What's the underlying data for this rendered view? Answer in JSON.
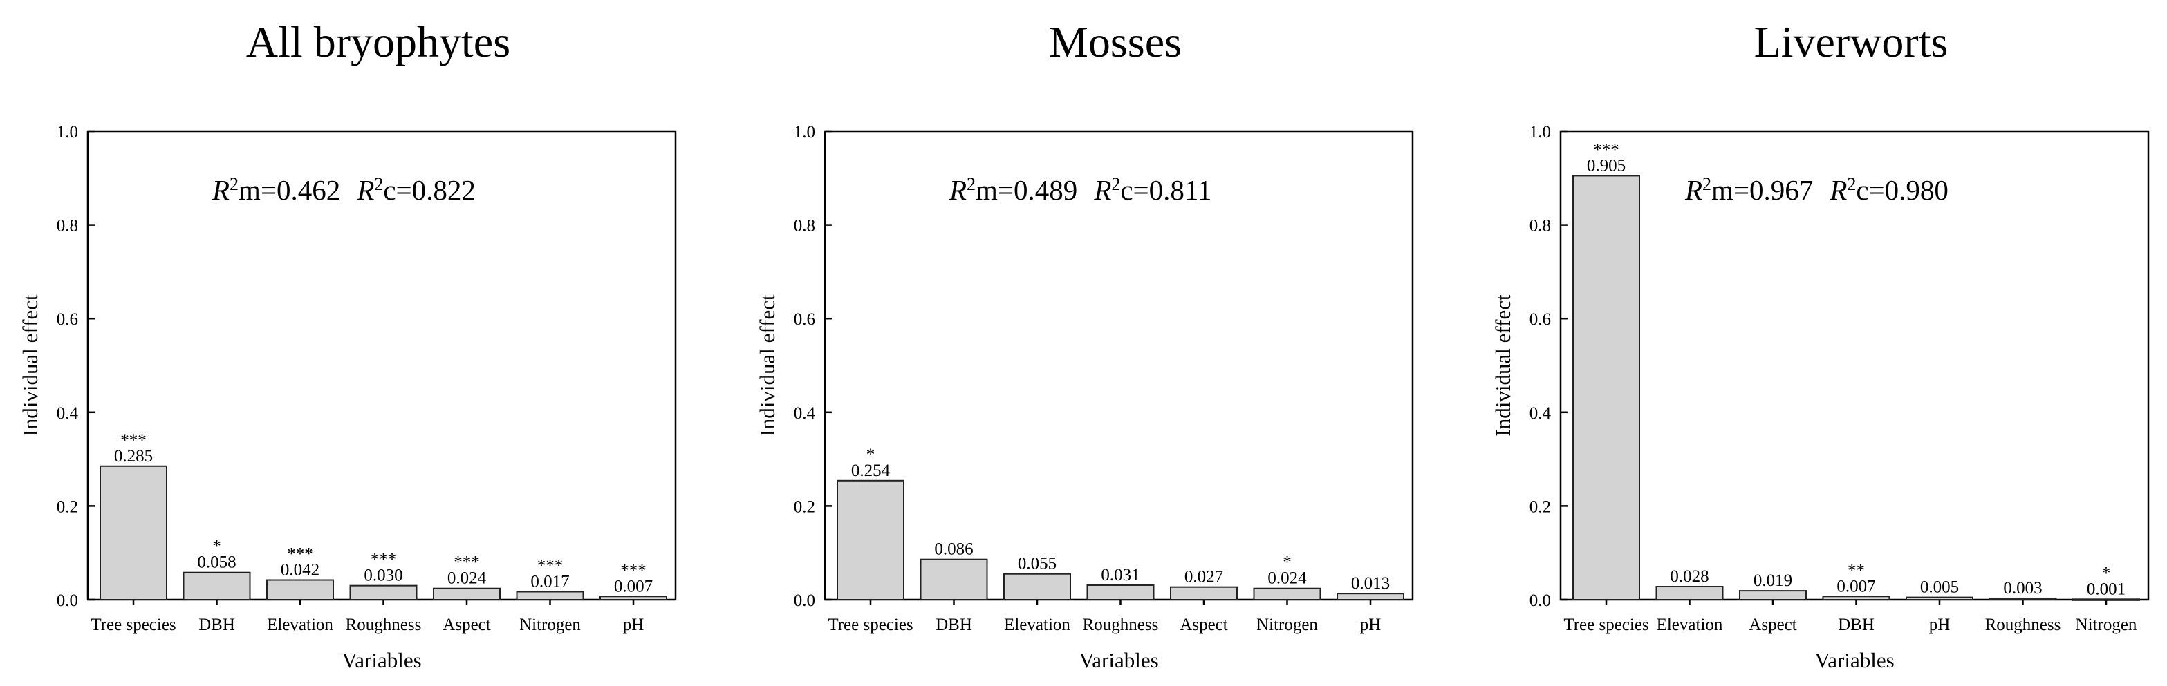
{
  "figure": {
    "shared": {
      "ylabel": "Individual effect",
      "xlabel": "Variables",
      "ylim": [
        0,
        1.0
      ],
      "yticks": [
        "0.0",
        "0.2",
        "0.4",
        "0.6",
        "0.8",
        "1.0"
      ]
    },
    "colors": {
      "bar_fill": "#d3d3d3",
      "bar_stroke": "#222222",
      "axis": "#000000"
    }
  },
  "chart_data": [
    {
      "type": "bar",
      "title": "All bryophytes",
      "xlabel": "Variables",
      "ylabel": "Individual effect",
      "ylim": [
        0,
        1.0
      ],
      "yticks": [
        0.0,
        0.2,
        0.4,
        0.6,
        0.8,
        1.0
      ],
      "categories": [
        "Tree species",
        "DBH",
        "Elevation",
        "Roughness",
        "Aspect",
        "Nitrogen",
        "pH"
      ],
      "values": [
        0.285,
        0.058,
        0.042,
        0.03,
        0.024,
        0.017,
        0.007
      ],
      "value_labels": [
        "0.285",
        "0.058",
        "0.042",
        "0.030",
        "0.024",
        "0.017",
        "0.007"
      ],
      "significance": [
        "***",
        "*",
        "***",
        "***",
        "***",
        "***",
        "***"
      ],
      "r2m_label": "m=0.462",
      "r2c_label": "c=0.822"
    },
    {
      "type": "bar",
      "title": "Mosses",
      "xlabel": "Variables",
      "ylabel": "Individual effect",
      "ylim": [
        0,
        1.0
      ],
      "yticks": [
        0.0,
        0.2,
        0.4,
        0.6,
        0.8,
        1.0
      ],
      "categories": [
        "Tree species",
        "DBH",
        "Elevation",
        "Roughness",
        "Aspect",
        "Nitrogen",
        "pH"
      ],
      "values": [
        0.254,
        0.086,
        0.055,
        0.031,
        0.027,
        0.024,
        0.013
      ],
      "value_labels": [
        "0.254",
        "0.086",
        "0.055",
        "0.031",
        "0.027",
        "0.024",
        "0.013"
      ],
      "significance": [
        "*",
        "",
        "",
        "",
        "",
        "*",
        ""
      ],
      "r2m_label": "m=0.489",
      "r2c_label": "c=0.811"
    },
    {
      "type": "bar",
      "title": "Liverworts",
      "xlabel": "Variables",
      "ylabel": "Individual effect",
      "ylim": [
        0,
        1.0
      ],
      "yticks": [
        0.0,
        0.2,
        0.4,
        0.6,
        0.8,
        1.0
      ],
      "categories": [
        "Tree species",
        "Elevation",
        "Aspect",
        "DBH",
        "pH",
        "Roughness",
        "Nitrogen"
      ],
      "values": [
        0.905,
        0.028,
        0.019,
        0.007,
        0.005,
        0.003,
        0.001
      ],
      "value_labels": [
        "0.905",
        "0.028",
        "0.019",
        "0.007",
        "0.005",
        "0.003",
        "0.001"
      ],
      "significance": [
        "***",
        "",
        "",
        "**",
        "",
        "",
        "*"
      ],
      "r2m_label": "m=0.967",
      "r2c_label": "c=0.980"
    }
  ]
}
